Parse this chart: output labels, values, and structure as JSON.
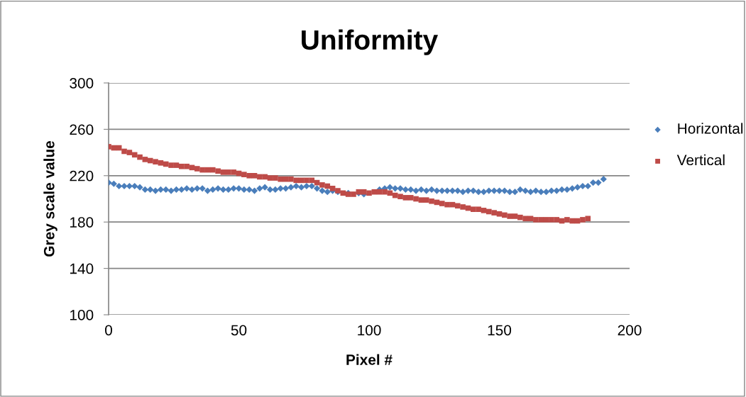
{
  "chart_data": {
    "type": "scatter",
    "title": "Uniformity",
    "xlabel": "Pixel #",
    "ylabel": "Grey scale value",
    "xlim": [
      0,
      200
    ],
    "xticks": [
      0,
      50,
      100,
      150,
      200
    ],
    "ylim": [
      100,
      300
    ],
    "yticks": [
      100,
      140,
      180,
      220,
      260,
      300
    ],
    "grid": "y",
    "legend": "right",
    "series": [
      {
        "name": "Horizontal",
        "color": "#4a7ebb",
        "marker": "diamond",
        "x": [
          0,
          2,
          4,
          6,
          8,
          10,
          12,
          14,
          16,
          18,
          20,
          22,
          24,
          26,
          28,
          30,
          32,
          34,
          36,
          38,
          40,
          42,
          44,
          46,
          48,
          50,
          52,
          54,
          56,
          58,
          60,
          62,
          64,
          66,
          68,
          70,
          72,
          74,
          76,
          78,
          80,
          82,
          84,
          86,
          88,
          90,
          92,
          94,
          96,
          98,
          100,
          102,
          104,
          106,
          108,
          110,
          112,
          114,
          116,
          118,
          120,
          122,
          124,
          126,
          128,
          130,
          132,
          134,
          136,
          138,
          140,
          142,
          144,
          146,
          148,
          150,
          152,
          154,
          156,
          158,
          160,
          162,
          164,
          166,
          168,
          170,
          172,
          174,
          176,
          178,
          180,
          182,
          184,
          186,
          188,
          190
        ],
        "values": [
          214,
          213,
          211,
          211,
          211,
          211,
          210,
          208,
          208,
          207,
          208,
          208,
          207,
          208,
          208,
          209,
          208,
          209,
          209,
          207,
          208,
          209,
          208,
          208,
          209,
          209,
          208,
          208,
          207,
          209,
          210,
          208,
          208,
          209,
          209,
          210,
          211,
          210,
          211,
          211,
          209,
          207,
          206,
          207,
          206,
          null,
          205,
          null,
          205,
          204,
          null,
          null,
          208,
          209,
          210,
          209,
          209,
          208,
          208,
          207,
          208,
          207,
          208,
          207,
          207,
          207,
          207,
          207,
          206,
          207,
          207,
          206,
          206,
          207,
          207,
          207,
          207,
          206,
          206,
          208,
          207,
          206,
          207,
          206,
          206,
          207,
          207,
          208,
          208,
          209,
          210,
          211,
          211,
          214,
          214,
          217
        ]
      },
      {
        "name": "Vertical",
        "color": "#be4b48",
        "marker": "square",
        "x": [
          0,
          2,
          4,
          6,
          8,
          10,
          12,
          14,
          16,
          18,
          20,
          22,
          24,
          26,
          28,
          30,
          32,
          34,
          36,
          38,
          40,
          42,
          44,
          46,
          48,
          50,
          52,
          54,
          56,
          58,
          60,
          62,
          64,
          66,
          68,
          70,
          72,
          74,
          76,
          78,
          80,
          82,
          84,
          86,
          88,
          90,
          92,
          94,
          96,
          98,
          100,
          102,
          104,
          106,
          108,
          110,
          112,
          114,
          116,
          118,
          120,
          122,
          124,
          126,
          128,
          130,
          132,
          134,
          136,
          138,
          140,
          142,
          144,
          146,
          148,
          150,
          152,
          154,
          156,
          158,
          160,
          162,
          164,
          166,
          168,
          170,
          172,
          174,
          176,
          178,
          180,
          182,
          184
        ],
        "values": [
          245,
          244,
          244,
          241,
          240,
          238,
          236,
          234,
          233,
          232,
          231,
          230,
          229,
          229,
          228,
          228,
          227,
          226,
          225,
          225,
          225,
          224,
          223,
          223,
          223,
          222,
          221,
          220,
          220,
          219,
          219,
          218,
          218,
          217,
          217,
          217,
          216,
          216,
          216,
          216,
          214,
          212,
          211,
          209,
          207,
          205,
          204,
          204,
          206,
          206,
          205,
          206,
          206,
          206,
          205,
          203,
          202,
          201,
          201,
          200,
          199,
          199,
          198,
          197,
          196,
          195,
          195,
          194,
          193,
          192,
          191,
          191,
          190,
          189,
          188,
          187,
          186,
          185,
          185,
          184,
          183,
          183,
          182,
          182,
          182,
          182,
          182,
          181,
          182,
          181,
          181,
          182,
          183
        ]
      }
    ]
  }
}
